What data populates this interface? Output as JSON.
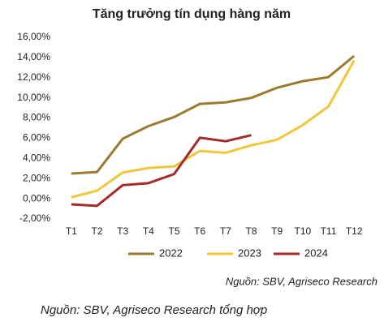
{
  "chart_data": {
    "type": "line",
    "title": "Tăng trưởng tín dụng hàng năm",
    "categories": [
      "T1",
      "T2",
      "T3",
      "T4",
      "T5",
      "T6",
      "T7",
      "T8",
      "T9",
      "T10",
      "T11",
      "T12"
    ],
    "series": [
      {
        "name": "2022",
        "color": "#9a7b2e",
        "values": [
          2.5,
          2.65,
          5.95,
          7.2,
          8.1,
          9.4,
          9.55,
          10.0,
          11.0,
          11.65,
          12.05,
          14.15
        ]
      },
      {
        "name": "2023",
        "color": "#f0c63c",
        "values": [
          0.15,
          0.8,
          2.6,
          3.05,
          3.2,
          4.75,
          4.55,
          5.3,
          5.85,
          7.3,
          9.15,
          13.7
        ]
      },
      {
        "name": "2024",
        "color": "#a52a2a",
        "values": [
          -0.55,
          -0.7,
          1.35,
          1.55,
          2.45,
          6.05,
          5.7,
          6.3,
          null,
          null,
          null,
          null
        ]
      }
    ],
    "ylim": [
      -2,
      16
    ],
    "yticks": [
      {
        "value": -2,
        "label": "-2,00%"
      },
      {
        "value": 0,
        "label": "0,00%"
      },
      {
        "value": 2,
        "label": "2,00%"
      },
      {
        "value": 4,
        "label": "4,00%"
      },
      {
        "value": 6,
        "label": "6,00%"
      },
      {
        "value": 8,
        "label": "8,00%"
      },
      {
        "value": 10,
        "label": "10,00%"
      },
      {
        "value": 12,
        "label": "12,00%"
      },
      {
        "value": 14,
        "label": "14,00%"
      },
      {
        "value": 16,
        "label": "16,00%"
      }
    ],
    "grid": false,
    "legend": "bottom",
    "source": "Nguồn: SBV, Agriseco Research",
    "caption": "Nguồn: SBV, Agriseco Research tổng hợp"
  }
}
